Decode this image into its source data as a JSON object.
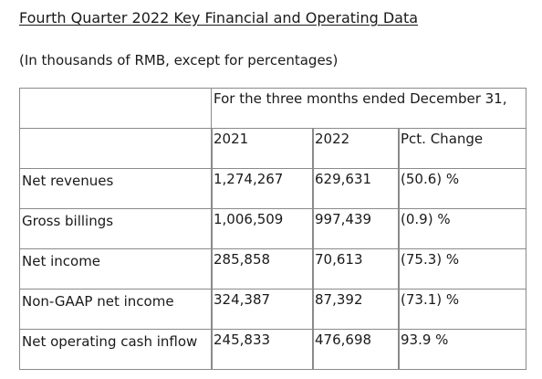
{
  "title": "Fourth Quarter 2022 Key Financial and Operating Data",
  "subtitle": "(In thousands of RMB, except for percentages)",
  "table": {
    "period_header": "For the three months ended December 31,",
    "columns": [
      "2021",
      "2022",
      "Pct. Change"
    ],
    "rows": [
      {
        "label": "Net revenues",
        "v2021": "1,274,267",
        "v2022": "629,631",
        "pct": "(50.6) %"
      },
      {
        "label": "Gross billings",
        "v2021": "1,006,509",
        "v2022": "997,439",
        "pct": "(0.9) %"
      },
      {
        "label": "Net income",
        "v2021": "285,858",
        "v2022": "70,613",
        "pct": "(75.3) %"
      },
      {
        "label": "Non-GAAP net income",
        "v2021": "324,387",
        "v2022": "87,392",
        "pct": "(73.1) %"
      },
      {
        "label": "Net operating cash inflow",
        "v2021": "245,833",
        "v2022": "476,698",
        "pct": "93.9 %"
      }
    ]
  }
}
